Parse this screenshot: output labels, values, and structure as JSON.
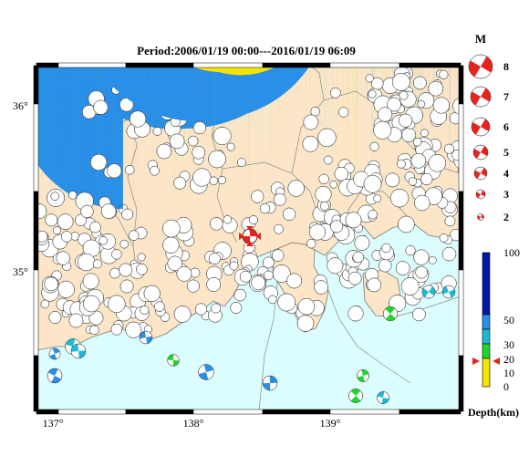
{
  "title": "Period:2006/01/19 00:00---2016/01/19 06:09",
  "axes": {
    "x_ticks": [
      "137°",
      "138°",
      "139°"
    ],
    "y_ticks": [
      "36°",
      "35°"
    ]
  },
  "magnitude_legend": {
    "label": "M",
    "levels": [
      "8",
      "7",
      "6",
      "5",
      "4",
      "3",
      "2"
    ],
    "color": "#e8231e"
  },
  "depth_scale": {
    "label": "Depth(km)",
    "ticks": [
      "100",
      "50",
      "30",
      "20",
      "10",
      "0"
    ],
    "colors": {
      "shallow": "#f5e400",
      "mid": "#22d62a",
      "cyan": "#1fb8d6",
      "blue": "#2a8fe6",
      "deep": "#0018a8"
    },
    "marker_depth": 20
  },
  "map_colors": {
    "land": "#fde6c8",
    "sea": "#dcfdfd",
    "boundary": "#7a7a7a"
  },
  "main_event": {
    "label": "red beachball"
  }
}
